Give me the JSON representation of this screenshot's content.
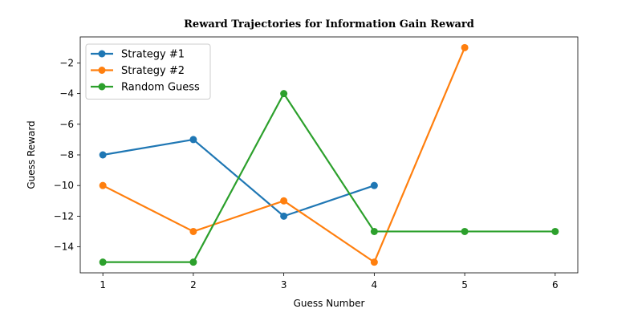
{
  "chart_data": {
    "type": "line",
    "title": "Reward Trajectories for Information Gain Reward",
    "xlabel": "Guess Number",
    "ylabel": "Guess Reward",
    "xlim": [
      0.75,
      6.25
    ],
    "ylim": [
      -15.7,
      -0.3
    ],
    "xticks": [
      1,
      2,
      3,
      4,
      5,
      6
    ],
    "yticks": [
      -14,
      -12,
      -10,
      -8,
      -6,
      -4,
      -2
    ],
    "grid": false,
    "legend_position": "top-left",
    "series": [
      {
        "name": "Strategy #1",
        "color": "#1f77b4",
        "x": [
          1,
          2,
          3,
          4
        ],
        "y": [
          -8,
          -7,
          -12,
          -10
        ]
      },
      {
        "name": "Strategy #2",
        "color": "#ff7f0e",
        "x": [
          1,
          2,
          3,
          4,
          5
        ],
        "y": [
          -10,
          -13,
          -11,
          -15,
          -1
        ]
      },
      {
        "name": "Random Guess",
        "color": "#2ca02c",
        "x": [
          1,
          2,
          3,
          4,
          5,
          6
        ],
        "y": [
          -15,
          -15,
          -4,
          -13,
          -13,
          -13
        ]
      }
    ]
  }
}
